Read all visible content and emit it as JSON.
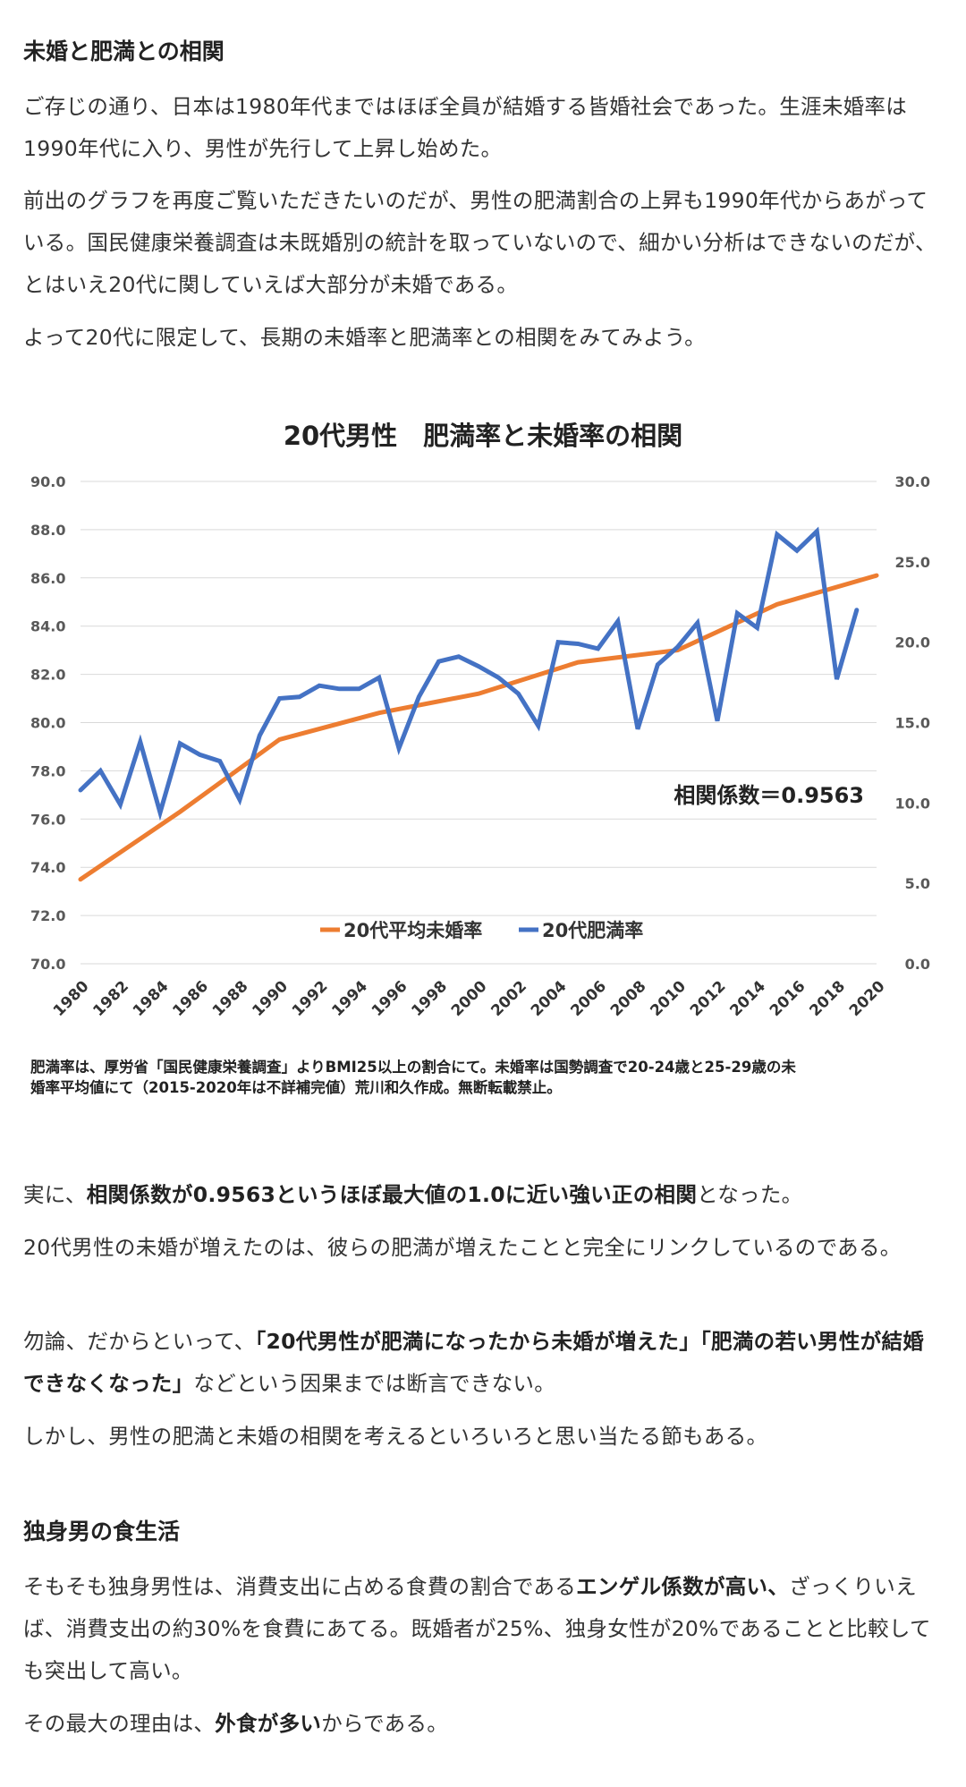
{
  "section1": {
    "heading": "未婚と肥満との相関",
    "p1": "ご存じの通り、日本は1980年代まではほぼ全員が結婚する皆婚社会であった。生涯未婚率は1990年代に入り、男性が先行して上昇し始めた。",
    "p2": "前出のグラフを再度ご覧いただきたいのだが、男性の肥満割合の上昇も1990年代からあがっている。国民健康栄養調査は未既婚別の統計を取っていないので、細かい分析はできないのだが、とはいえ20代に関していえば大部分が未婚である。",
    "p3": "よって20代に限定して、長期の未婚率と肥満率との相関をみてみよう。"
  },
  "chart_data": {
    "type": "line",
    "title": "20代男性　肥満率と未婚率の相関",
    "annotation": "相関係数＝0.9563",
    "note": "肥満率は、厚労省「国民健康栄養調査」よりBMI25以上の割合にて。未婚率は国勢調査で20-24歳と25-29歳の未婚率平均値にて（2015-2020年は不詳補完値）荒川和久作成。無断転載禁止。",
    "x": [
      1980,
      1981,
      1982,
      1983,
      1984,
      1985,
      1986,
      1987,
      1988,
      1989,
      1990,
      1991,
      1992,
      1993,
      1994,
      1995,
      1996,
      1997,
      1998,
      1999,
      2000,
      2001,
      2002,
      2003,
      2004,
      2005,
      2006,
      2007,
      2008,
      2009,
      2010,
      2011,
      2012,
      2013,
      2014,
      2015,
      2016,
      2017,
      2018,
      2019,
      2020
    ],
    "x_tick_labels": [
      "1980",
      "1982",
      "1984",
      "1986",
      "1988",
      "1990",
      "1992",
      "1994",
      "1996",
      "1998",
      "2000",
      "2002",
      "2004",
      "2006",
      "2008",
      "2010",
      "2012",
      "2014",
      "2016",
      "2018",
      "2020"
    ],
    "y_left": {
      "ylim": [
        70,
        90
      ],
      "ticks": [
        "70.0",
        "72.0",
        "74.0",
        "76.0",
        "78.0",
        "80.0",
        "82.0",
        "84.0",
        "86.0",
        "88.0",
        "90.0"
      ]
    },
    "y_right": {
      "ylim": [
        0,
        30
      ],
      "ticks": [
        "0.0",
        "5.0",
        "10.0",
        "15.0",
        "20.0",
        "25.0",
        "30.0"
      ]
    },
    "series": [
      {
        "name": "20代平均未婚率",
        "axis": "left",
        "color": "#ED7D31",
        "x": [
          1980,
          1985,
          1990,
          1995,
          2000,
          2005,
          2010,
          2015,
          2020
        ],
        "values": [
          73.5,
          76.3,
          79.3,
          80.4,
          81.2,
          82.5,
          83.0,
          84.9,
          86.1
        ]
      },
      {
        "name": "20代肥満率",
        "axis": "right",
        "color": "#4472C4",
        "x": [
          1980,
          1981,
          1982,
          1983,
          1984,
          1985,
          1986,
          1987,
          1988,
          1989,
          1990,
          1991,
          1992,
          1993,
          1994,
          1995,
          1996,
          1997,
          1998,
          1999,
          2000,
          2001,
          2002,
          2003,
          2004,
          2005,
          2006,
          2007,
          2008,
          2009,
          2010,
          2011,
          2012,
          2013,
          2014,
          2015,
          2016,
          2017,
          2018,
          2019
        ],
        "values": [
          10.8,
          12.0,
          9.9,
          13.8,
          9.4,
          13.7,
          13.0,
          12.6,
          10.2,
          14.2,
          16.5,
          16.6,
          17.3,
          17.1,
          17.1,
          17.8,
          13.4,
          16.6,
          18.8,
          19.1,
          18.5,
          17.8,
          16.8,
          14.8,
          20.0,
          19.9,
          19.6,
          21.3,
          14.6,
          18.6,
          19.7,
          21.2,
          15.1,
          21.8,
          20.9,
          26.7,
          25.7,
          26.9,
          17.7,
          22.0
        ]
      }
    ],
    "legend_placement": "bottom-center",
    "grid": true
  },
  "section1b": {
    "p4_pre": "実に、",
    "p4_bold": "相関係数が0.9563というほぼ最大値の1.0に近い強い正の相関",
    "p4_post": "となった。",
    "p5": "20代男性の未婚が増えたのは、彼らの肥満が増えたことと完全にリンクしているのである。",
    "p6_pre": "勿論、だからといって、",
    "p6_bold": "「20代男性が肥満になったから未婚が増えた」「肥満の若い男性が結婚できなくなった」",
    "p6_post": "などという因果までは断言できない。",
    "p7": "しかし、男性の肥満と未婚の相関を考えるといろいろと思い当たる節もある。"
  },
  "section2": {
    "heading": "独身男の食生活",
    "p1_pre": "そもそも独身男性は、消費支出に占める食費の割合である",
    "p1_bold": "エンゲル係数が高い、",
    "p1_post": "ざっくりいえば、消費支出の約30%を食費にあてる。既婚者が25%、独身女性が20%であることと比較しても突出して高い。",
    "p2_pre": "その最大の理由は、",
    "p2_bold": "外食が多い",
    "p2_post": "からである。"
  }
}
